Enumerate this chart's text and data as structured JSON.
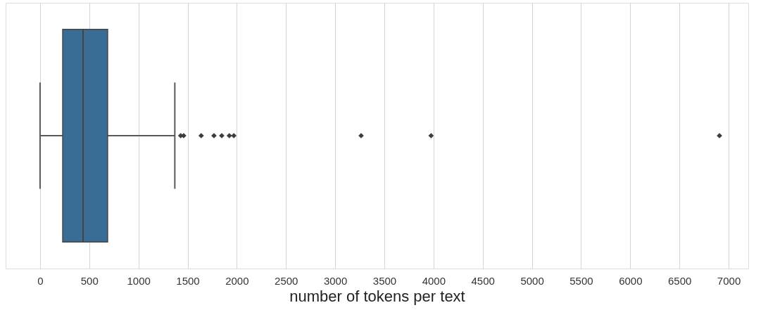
{
  "chart_data": {
    "type": "box",
    "xlabel": "number of tokens per text",
    "orientation": "horizontal",
    "categories": [
      null
    ],
    "boxes": [
      {
        "low": 0,
        "q1": 230,
        "median": 437,
        "q3": 687,
        "high": 1370,
        "outliers": [
          1430,
          1460,
          1638,
          1768,
          1847,
          1924,
          1970,
          3264,
          3975,
          6907
        ]
      }
    ],
    "color": "#3a6d96",
    "xlim": [
      -350,
      7200
    ],
    "xticks": [
      0,
      500,
      1000,
      1500,
      2000,
      2500,
      3000,
      3500,
      4000,
      4500,
      5000,
      5500,
      6000,
      6500,
      7000
    ],
    "grid": "x",
    "tick_labels": "x"
  }
}
